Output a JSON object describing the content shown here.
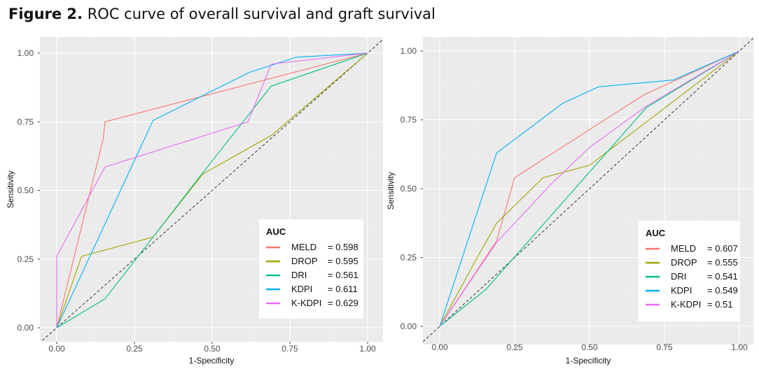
{
  "figure": {
    "label": "Figure 2.",
    "caption": "ROC curve of overall survival and graft survival"
  },
  "chart_data": [
    {
      "type": "line",
      "xlabel": "1-Specificity",
      "ylabel": "Sensitivity",
      "xlim": [
        0,
        1
      ],
      "ylim": [
        0,
        1
      ],
      "xticks": [
        "0.00",
        "0.25",
        "0.50",
        "0.75",
        "1.00"
      ],
      "yticks": [
        "0.00",
        "0.25",
        "0.50",
        "0.75",
        "1.00"
      ],
      "grid": true,
      "reference_line": "diagonal-dashed",
      "legend": {
        "title": "AUC",
        "placement": "bottom-right"
      },
      "series": [
        {
          "name": "MELD",
          "label": "= 0.598",
          "color": "#F8766D",
          "x": [
            0,
            0.15,
            0.155,
            1
          ],
          "y": [
            0,
            0.69,
            0.75,
            1
          ]
        },
        {
          "name": "DROP",
          "label": "= 0.595",
          "color": "#A3A500",
          "x": [
            0,
            0.08,
            0.31,
            0.47,
            0.69,
            1
          ],
          "y": [
            0,
            0.26,
            0.33,
            0.56,
            0.7,
            1
          ]
        },
        {
          "name": "DRI",
          "label": "= 0.561",
          "color": "#00BF7D",
          "x": [
            0,
            0.155,
            0.31,
            0.46,
            0.69,
            1
          ],
          "y": [
            0,
            0.105,
            0.33,
            0.55,
            0.88,
            1
          ]
        },
        {
          "name": "KDPI",
          "label": "= 0.611",
          "color": "#00B0F6",
          "x": [
            0,
            0.31,
            0.62,
            0.77,
            1
          ],
          "y": [
            0,
            0.755,
            0.93,
            0.985,
            1
          ]
        },
        {
          "name": "K-KDPI",
          "label": "= 0.629",
          "color": "#E76BF3",
          "x": [
            0,
            0,
            0.155,
            0.615,
            0.69,
            1
          ],
          "y": [
            0,
            0.26,
            0.585,
            0.75,
            0.96,
            1
          ]
        }
      ]
    },
    {
      "type": "line",
      "xlabel": "1-Specificity",
      "ylabel": "Sensitivity",
      "xlim": [
        0,
        1
      ],
      "ylim": [
        0,
        1
      ],
      "xticks": [
        "0.00",
        "0.25",
        "0.50",
        "0.75",
        "1.00"
      ],
      "yticks": [
        "0.00",
        "0.25",
        "0.50",
        "0.75",
        "1.00"
      ],
      "grid": true,
      "reference_line": "diagonal-dashed",
      "legend": {
        "title": "AUC",
        "placement": "bottom-right"
      },
      "series": [
        {
          "name": "MELD",
          "label": "= 0.607",
          "color": "#F8766D",
          "x": [
            0,
            0.19,
            0.25,
            0.68,
            1
          ],
          "y": [
            0,
            0.31,
            0.54,
            0.84,
            1
          ]
        },
        {
          "name": "DROP",
          "label": "= 0.555",
          "color": "#A3A500",
          "x": [
            0,
            0.12,
            0.19,
            0.345,
            0.5,
            1
          ],
          "y": [
            0,
            0.24,
            0.375,
            0.54,
            0.585,
            1
          ]
        },
        {
          "name": "DRI",
          "label": "= 0.541",
          "color": "#00BF7D",
          "x": [
            0,
            0.155,
            0.69,
            1
          ],
          "y": [
            0,
            0.135,
            0.795,
            1
          ]
        },
        {
          "name": "KDPI",
          "label": "= 0.549",
          "color": "#00B0F6",
          "x": [
            0,
            0.19,
            0.41,
            0.53,
            0.78,
            1
          ],
          "y": [
            0,
            0.63,
            0.81,
            0.87,
            0.895,
            1
          ]
        },
        {
          "name": "K-KDPI",
          "label": "= 0.51",
          "color": "#E76BF3",
          "x": [
            0,
            0.19,
            0.37,
            0.5,
            0.69,
            1
          ],
          "y": [
            0,
            0.305,
            0.515,
            0.65,
            0.8,
            1
          ]
        }
      ]
    }
  ]
}
